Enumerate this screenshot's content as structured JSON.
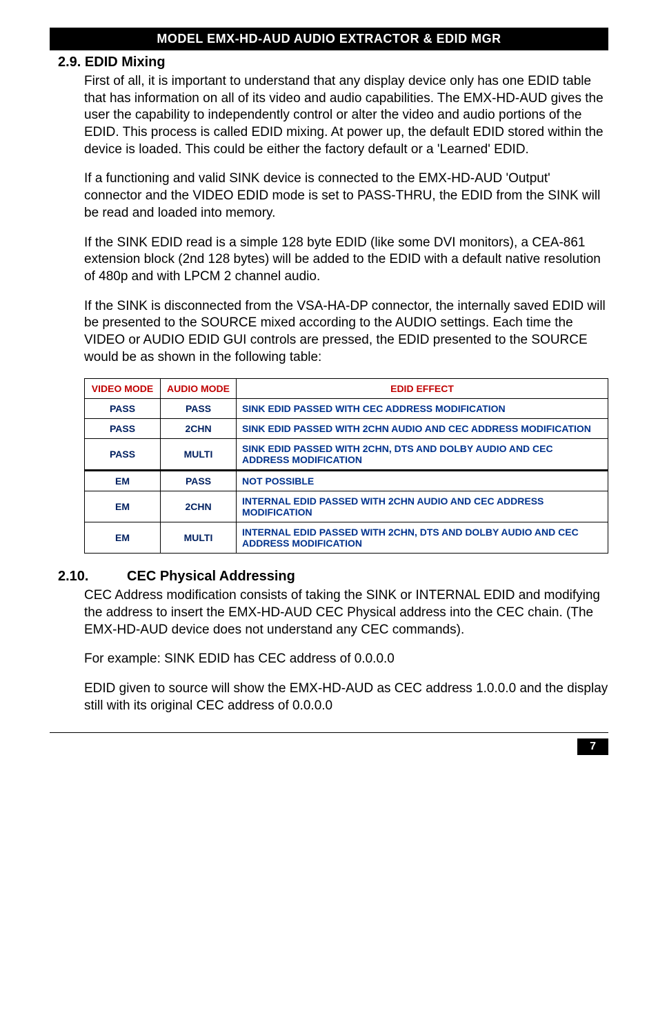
{
  "header": {
    "title": "MODEL EMX-HD-AUD  AUDIO EXTRACTOR & EDID MGR"
  },
  "section_29": {
    "heading": "2.9.  EDID Mixing",
    "p1": "First of all, it is important to understand that any display device only has one EDID table that has information on all of its video and audio capabilities. The EMX-HD-AUD gives the user the capability to independently control or alter the video and audio portions of the EDID. This process is called EDID mixing. At power up, the default EDID stored within the device is loaded. This could be either the factory default or a 'Learned' EDID.",
    "p2": "If a functioning and valid SINK device is connected to the EMX-HD-AUD 'Output' connector and the VIDEO EDID mode is set to PASS-THRU, the EDID from the SINK will be read and loaded into memory.",
    "p3": "If the SINK EDID read is a simple 128 byte EDID (like some DVI monitors), a CEA-861 extension block (2nd 128 bytes) will be added to the EDID with a default native resolution of 480p and with LPCM 2 channel audio.",
    "p4": "If the SINK is disconnected from the VSA-HA-DP connector, the internally saved EDID will be presented to the SOURCE mixed according to the AUDIO settings. Each time the VIDEO or AUDIO EDID GUI controls are pressed, the EDID presented to the SOURCE would be as shown in the following table:"
  },
  "table": {
    "columns": [
      "VIDEO MODE",
      "AUDIO MODE",
      "EDID EFFECT"
    ],
    "header_colors": [
      "#c00000",
      "#c00000",
      "#c00000"
    ],
    "cell_color_col01": "#002060",
    "cell_color_col2": "#00328c",
    "rows": [
      {
        "video": "PASS",
        "audio": "PASS",
        "effect": "SINK EDID PASSED WITH CEC ADDRESS MODIFICATION"
      },
      {
        "video": "PASS",
        "audio": "2CHN",
        "effect": "SINK EDID PASSED WITH 2CHN AUDIO AND CEC ADDRESS MODIFICATION"
      },
      {
        "video": "PASS",
        "audio": "MULTI",
        "effect": "SINK EDID PASSED WITH 2CHN, DTS AND DOLBY AUDIO AND CEC ADDRESS MODIFICATION"
      },
      {
        "video": "EM",
        "audio": "PASS",
        "effect": "NOT POSSIBLE"
      },
      {
        "video": "EM",
        "audio": "2CHN",
        "effect": "INTERNAL EDID PASSED WITH 2CHN AUDIO AND CEC ADDRESS MODIFICATION"
      },
      {
        "video": "EM",
        "audio": "MULTI",
        "effect": "INTERNAL EDID PASSED WITH 2CHN, DTS AND DOLBY AUDIO AND CEC ADDRESS MODIFICATION"
      }
    ]
  },
  "section_210": {
    "heading": "2.10.          CEC Physical Addressing",
    "p1": "CEC Address modification consists of taking the SINK or INTERNAL EDID and modifying the address to insert the EMX-HD-AUD CEC Physical address into the CEC chain. (The EMX-HD-AUD device does not understand any CEC commands).",
    "p2": "For example: SINK EDID has CEC address of 0.0.0.0",
    "p3": "EDID given to source will show the EMX-HD-AUD as CEC address 1.0.0.0 and the display still with its original CEC address of 0.0.0.0"
  },
  "footer": {
    "page_number": "7"
  },
  "style": {
    "header_bg": "#000000",
    "header_fg": "#ffffff",
    "body_color": "#000000",
    "table_header_color": "#c00000",
    "table_col01_color": "#002060",
    "table_col2_color": "#00328c",
    "page_bg": "#ffffff"
  }
}
